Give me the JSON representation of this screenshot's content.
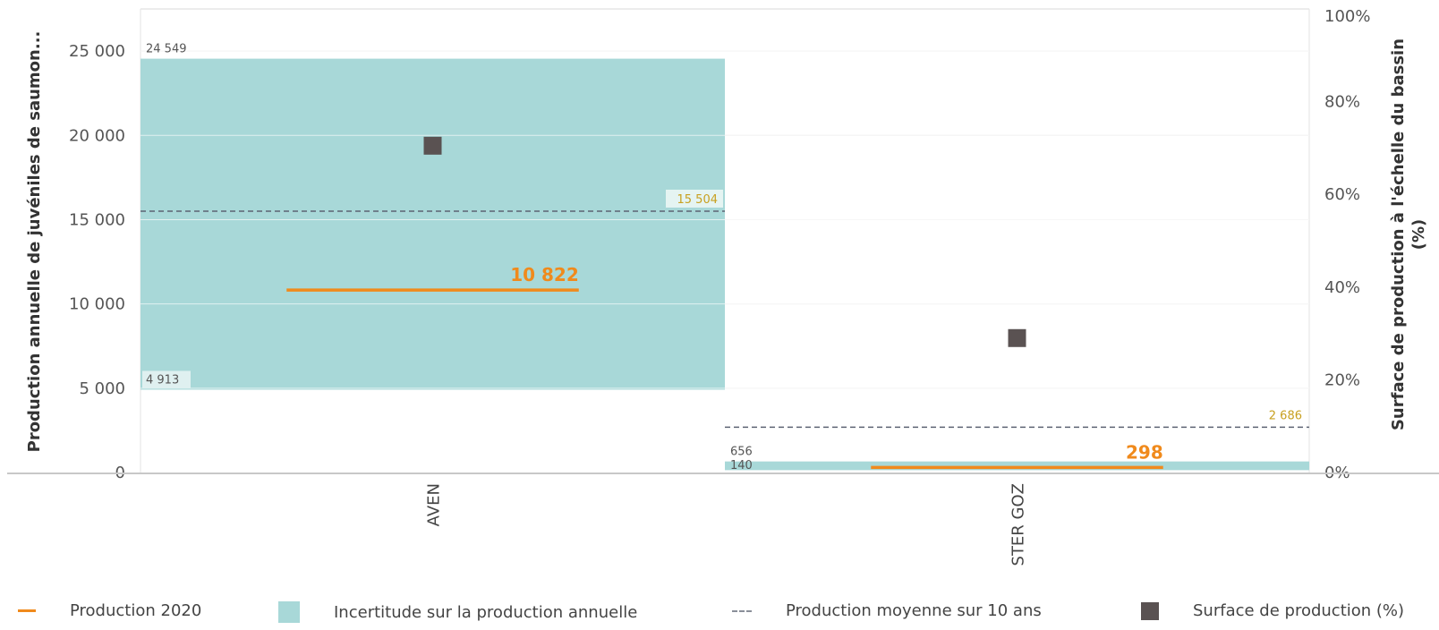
{
  "chart_data": {
    "type": "bar",
    "categories": [
      "AVEN",
      "STER GOZ"
    ],
    "left_axis": {
      "label": "Production annuelle de juvéniles de saumon...",
      "ylim": [
        0,
        27500
      ],
      "ticks": [
        0,
        5000,
        10000,
        15000,
        20000,
        25000
      ],
      "tick_labels": [
        "0",
        "5 000",
        "10 000",
        "15 000",
        "20 000",
        "25 000"
      ]
    },
    "right_axis": {
      "label_lines": [
        "Surface de production à l'échelle du bassin",
        "(%)"
      ],
      "ylim": [
        0,
        100
      ],
      "ticks": [
        0,
        20,
        40,
        60,
        80,
        100
      ],
      "tick_labels": [
        "0%",
        "20%",
        "40%",
        "60%",
        "80%",
        "100%"
      ]
    },
    "series": [
      {
        "name": "Incertitude sur la production annuelle",
        "kind": "range",
        "color": "#a8d8d8",
        "low": [
          4913,
          140
        ],
        "high": [
          24549,
          656
        ],
        "low_labels": [
          "4 913",
          "140"
        ],
        "high_labels": [
          "24 549",
          "656"
        ]
      },
      {
        "name": "Production 2020",
        "kind": "segment",
        "color": "#f08a1c",
        "values": [
          10822,
          298
        ],
        "labels": [
          "10 822",
          "298"
        ]
      },
      {
        "name": "Production moyenne sur 10 ans",
        "kind": "dashed",
        "color": "#5c6373",
        "label_color": "#c8a020",
        "values": [
          15504,
          2686
        ],
        "labels": [
          "15 504",
          "2 686"
        ]
      },
      {
        "name": "Surface de production (%)",
        "kind": "square",
        "axis": "right",
        "color": "#5a5252",
        "values": [
          70.5,
          29
        ]
      }
    ],
    "grid": true,
    "legend_position": "bottom"
  },
  "legend": {
    "production_2020": "Production 2020",
    "incertitude": "Incertitude sur la production annuelle",
    "moyenne": "Production moyenne sur 10 ans",
    "surface": "Surface de production (%)"
  }
}
